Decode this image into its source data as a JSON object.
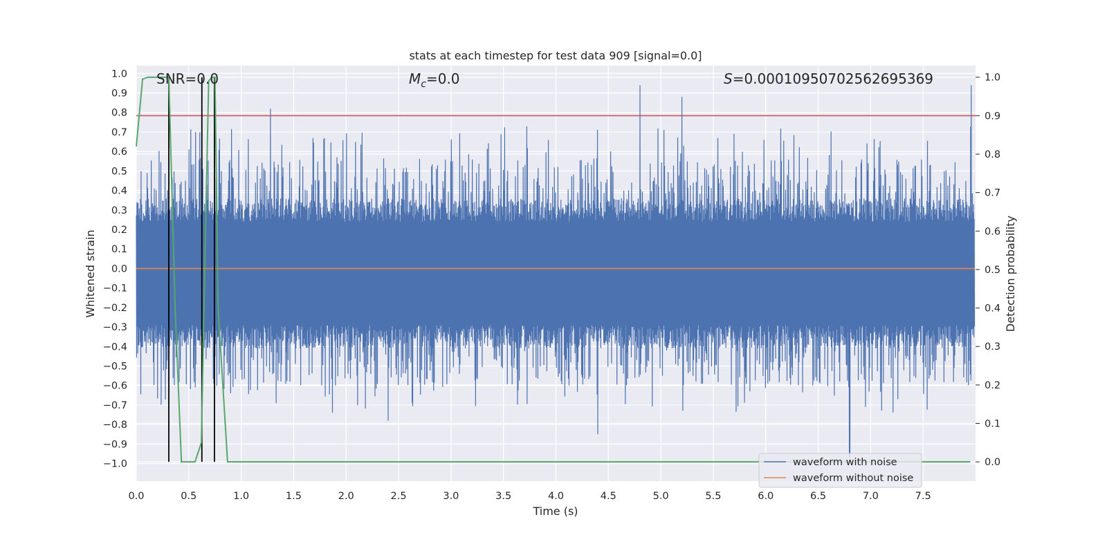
{
  "chart_data": {
    "type": "line",
    "title": "stats at each timestep for test data 909 [signal=0.0]",
    "xlabel": "Time (s)",
    "ylabel_left": "Whitened strain",
    "ylabel_right": "Detection probability",
    "xlim": [
      0.0,
      8.0
    ],
    "ylim_left": [
      -1.09,
      1.04
    ],
    "ylim_right": [
      -0.05,
      1.03
    ],
    "xticks": [
      "0.0",
      "0.5",
      "1.0",
      "1.5",
      "2.0",
      "2.5",
      "3.0",
      "3.5",
      "4.0",
      "4.5",
      "5.0",
      "5.5",
      "6.0",
      "6.5",
      "7.0",
      "7.5"
    ],
    "yticks_left": [
      "1.0",
      "0.9",
      "0.8",
      "0.7",
      "0.6",
      "0.5",
      "0.4",
      "0.3",
      "0.2",
      "0.1",
      "0.0",
      "−0.1",
      "−0.2",
      "−0.3",
      "−0.4",
      "−0.5",
      "−0.6",
      "−0.7",
      "−0.8",
      "−0.9",
      "−1.0"
    ],
    "yticks_right": [
      "1.0",
      "0.9",
      "0.8",
      "0.7",
      "0.6",
      "0.5",
      "0.4",
      "0.3",
      "0.2",
      "0.1",
      "0.0"
    ],
    "annotations": {
      "snr": "SNR=0.0",
      "mc_symbol": "M",
      "mc_sub": "c",
      "mc_value": "=0.0",
      "s_symbol": "S",
      "s_value": "=0.00010950702562695369"
    },
    "threshold_right": 0.9,
    "vertical_markers_x": [
      0.31,
      0.625,
      0.745
    ],
    "series": [
      {
        "name": "waveform with noise",
        "color": "#4c72b0",
        "axis": "left",
        "kind": "noise",
        "typical_max": 0.36,
        "typical_min": -0.41,
        "notable_peaks": [
          {
            "x": 1.28,
            "y": 0.82
          },
          {
            "x": 4.8,
            "y": 0.94
          },
          {
            "x": 5.2,
            "y": 0.88
          },
          {
            "x": 7.96,
            "y": 0.94
          },
          {
            "x": 6.8,
            "y": -0.97
          },
          {
            "x": 4.4,
            "y": -0.85
          },
          {
            "x": 2.4,
            "y": -0.78
          }
        ]
      },
      {
        "name": "waveform without noise",
        "color": "#dd8452",
        "axis": "left",
        "x": [
          0.0,
          7.99
        ],
        "y": [
          0.0,
          0.0
        ]
      },
      {
        "name": "detection probability",
        "color": "#55a868",
        "axis": "right",
        "x": [
          0.0,
          0.06,
          0.11,
          0.16,
          0.21,
          0.26,
          0.31,
          0.37,
          0.43,
          0.5,
          0.56,
          0.62,
          0.66,
          0.69,
          0.72,
          0.75,
          0.78,
          0.87,
          7.95
        ],
        "y": [
          0.82,
          0.995,
          1.0,
          1.0,
          1.0,
          1.0,
          1.0,
          0.4,
          0.0,
          0.0,
          0.0,
          0.05,
          0.6,
          0.99,
          1.0,
          1.0,
          0.4,
          0.0,
          0.0
        ]
      }
    ],
    "legend": [
      "waveform with noise",
      "waveform without noise"
    ],
    "legend_placement": "lower-right",
    "colors": {
      "background": "#eaeaf2",
      "grid": "#ffffff",
      "noise": "#4c72b0",
      "clean": "#dd8452",
      "prob": "#55a868",
      "threshold": "#c44e52",
      "marker": "#000000"
    }
  }
}
